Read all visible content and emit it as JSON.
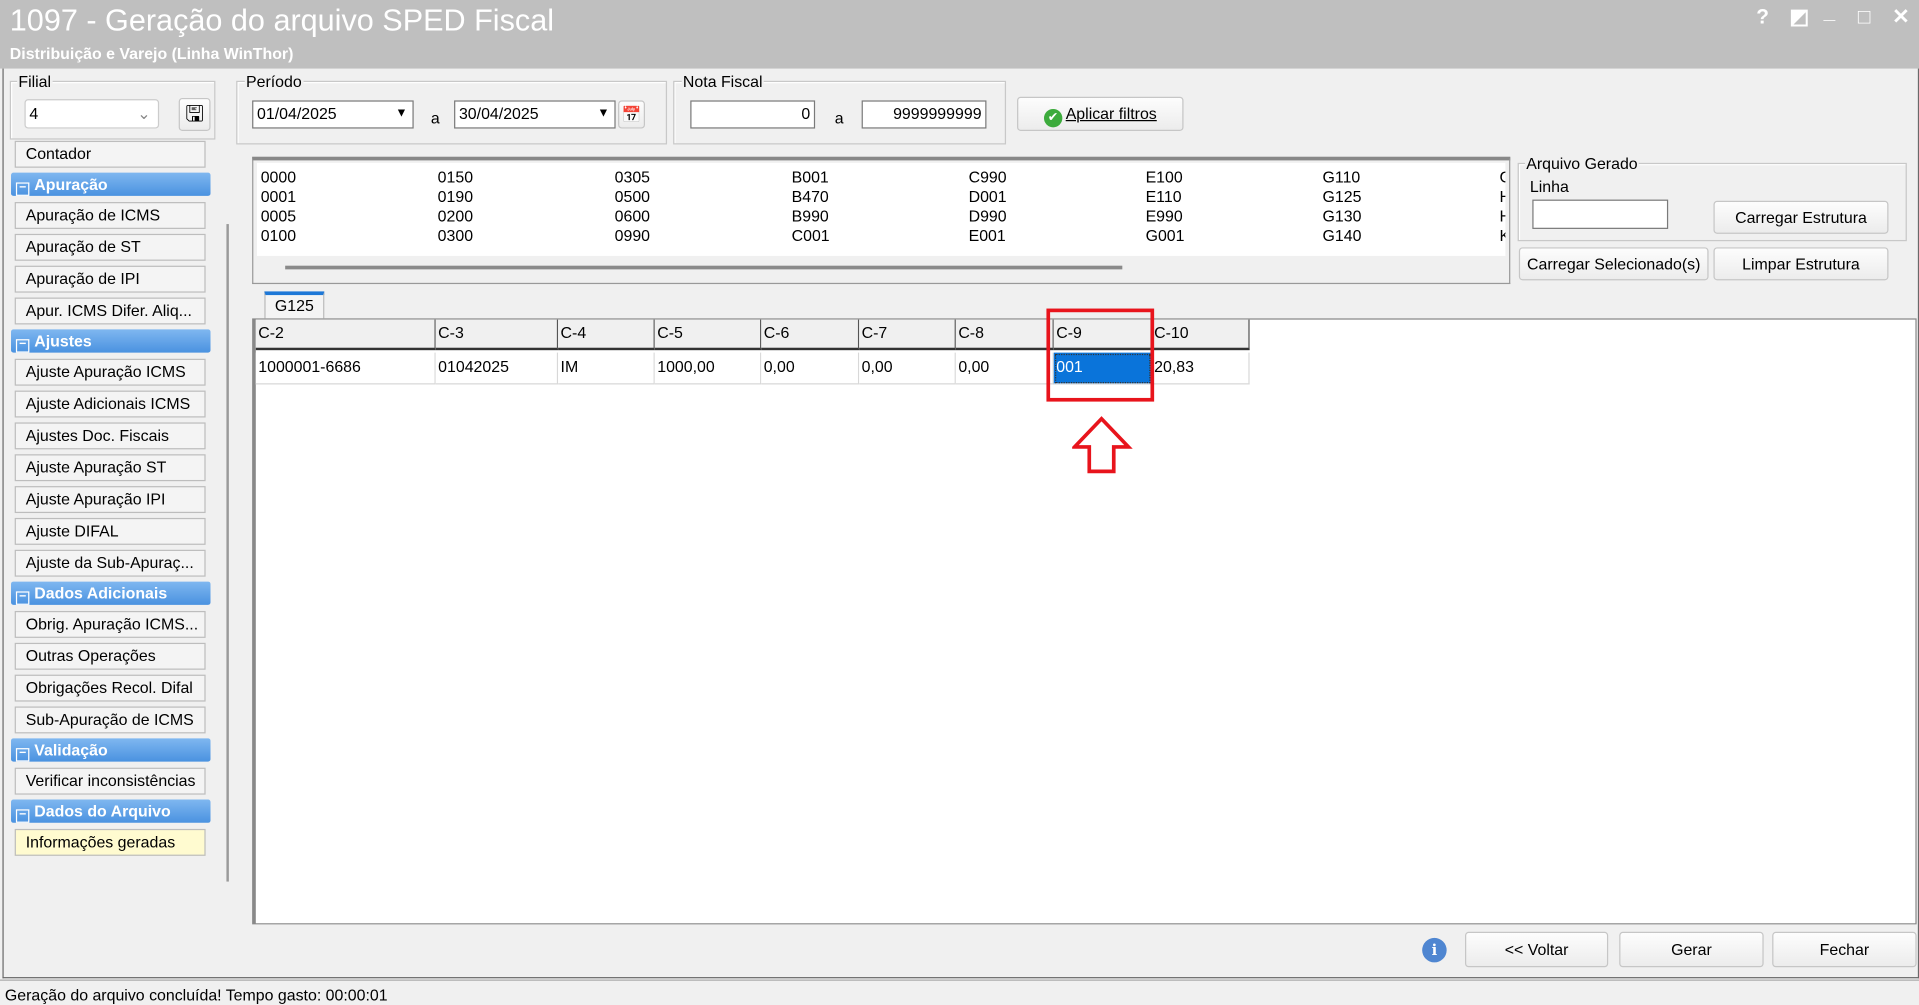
{
  "window": {
    "title": "1097 - Geração do arquivo SPED Fiscal",
    "subtitle": "Distribuição e Varejo (Linha WinThor)",
    "controls": [
      "?",
      "◩",
      "_",
      "□",
      "✕"
    ]
  },
  "filial": {
    "label": "Filial",
    "value": "4"
  },
  "periodo": {
    "label": "Período",
    "from": "01/04/2025",
    "sep": "a",
    "to": "30/04/2025"
  },
  "nota_fiscal": {
    "label": "Nota Fiscal",
    "from": "0",
    "sep": "a",
    "to": "9999999999"
  },
  "apply_button": "Aplicar filtros",
  "sidebar": [
    {
      "type": "item",
      "label": "Contador"
    },
    {
      "type": "header",
      "label": "Apuração"
    },
    {
      "type": "item",
      "label": "Apuração de ICMS"
    },
    {
      "type": "item",
      "label": "Apuração de ST"
    },
    {
      "type": "item",
      "label": "Apuração de IPI"
    },
    {
      "type": "item",
      "label": "Apur. ICMS Difer. Aliq..."
    },
    {
      "type": "header",
      "label": "Ajustes"
    },
    {
      "type": "item",
      "label": "Ajuste Apuração ICMS"
    },
    {
      "type": "item",
      "label": "Ajuste Adicionais ICMS"
    },
    {
      "type": "item",
      "label": "Ajustes Doc. Fiscais"
    },
    {
      "type": "item",
      "label": "Ajuste Apuração ST"
    },
    {
      "type": "item",
      "label": "Ajuste Apuração IPI"
    },
    {
      "type": "item",
      "label": "Ajuste DIFAL"
    },
    {
      "type": "item",
      "label": "Ajuste da Sub-Apuraç..."
    },
    {
      "type": "header",
      "label": "Dados Adicionais"
    },
    {
      "type": "item",
      "label": "Obrig. Apuração ICMS..."
    },
    {
      "type": "item",
      "label": "Outras Operações"
    },
    {
      "type": "item",
      "label": "Obrigações Recol. Difal"
    },
    {
      "type": "item",
      "label": "Sub-Apuração de ICMS"
    },
    {
      "type": "header",
      "label": "Validação"
    },
    {
      "type": "item",
      "label": "Verificar inconsistências"
    },
    {
      "type": "header",
      "label": "Dados do Arquivo"
    },
    {
      "type": "item",
      "label": "Informações geradas",
      "selected": true
    }
  ],
  "registers": [
    [
      "0000",
      "0001",
      "0005",
      "0100"
    ],
    [
      "0150",
      "0190",
      "0200",
      "0300"
    ],
    [
      "0305",
      "0500",
      "0600",
      "0990"
    ],
    [
      "B001",
      "B470",
      "B990",
      "C001"
    ],
    [
      "C990",
      "D001",
      "D990",
      "E001"
    ],
    [
      "E100",
      "E110",
      "E990",
      "G001"
    ],
    [
      "G110",
      "G125",
      "G130",
      "G140"
    ],
    [
      "G",
      "H",
      "H",
      "K"
    ]
  ],
  "arquivo_gerado": {
    "label": "Arquivo Gerado",
    "linha_label": "Linha",
    "linha_value": "",
    "carregar_estrutura": "Carregar Estrutura",
    "carregar_selecionados": "Carregar Selecionado(s)",
    "limpar_estrutura": "Limpar Estrutura"
  },
  "tab": {
    "label": "G125"
  },
  "grid": {
    "columns": [
      "C-2",
      "C-3",
      "C-4",
      "C-5",
      "C-6",
      "C-7",
      "C-8",
      "C-9",
      "C-10"
    ],
    "rows": [
      [
        "1000001-6686",
        "01042025",
        "IM",
        "1000,00",
        "0,00",
        "0,00",
        "0,00",
        "001",
        "20,83"
      ]
    ],
    "selected_column": "C-9"
  },
  "highlight_color": "#e8141c",
  "footer": {
    "voltar": "<< Voltar",
    "gerar": "Gerar",
    "fechar": "Fechar"
  },
  "status": "Geração do arquivo concluída! Tempo gasto: 00:00:01"
}
